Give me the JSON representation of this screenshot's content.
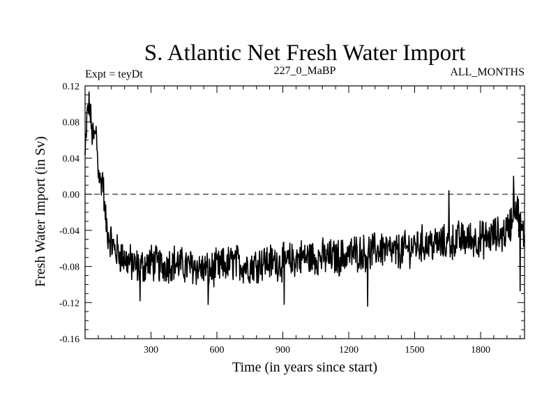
{
  "chart_data": {
    "type": "line",
    "title": "S. Atlantic Net Fresh Water Import",
    "subtitle_left": "Expt = teyDt",
    "subtitle_center": "227_0_MaBP",
    "subtitle_right": "ALL_MONTHS",
    "xlabel": "Time (in years since start)",
    "ylabel": "Fresh Water Import (in Sv)",
    "xlim": [
      0,
      2000
    ],
    "ylim": [
      -0.16,
      0.12
    ],
    "x_ticks": [
      300,
      600,
      900,
      1200,
      1500,
      1800
    ],
    "x_tick_labels": [
      "300",
      "600",
      "900",
      "1200",
      "1500",
      "1800"
    ],
    "y_ticks": [
      0.12,
      0.08,
      0.04,
      0.0,
      -0.04,
      -0.08,
      -0.12,
      -0.16
    ],
    "y_tick_labels": [
      "0.12",
      "0.08",
      "0.04",
      "0.00",
      "-0.04",
      "-0.08",
      "-0.12",
      "-0.16"
    ],
    "reference_line": {
      "y": 0.0,
      "style": "dashed"
    },
    "series": [
      {
        "name": "Net fresh water import",
        "x": [
          0,
          10,
          20,
          30,
          40,
          50,
          60,
          70,
          80,
          90,
          100,
          115,
          130,
          150,
          175,
          200,
          230,
          260,
          300,
          350,
          400,
          450,
          500,
          560,
          620,
          680,
          740,
          800,
          860,
          920,
          980,
          1040,
          1100,
          1160,
          1220,
          1290,
          1350,
          1410,
          1470,
          1530,
          1590,
          1650,
          1700,
          1760,
          1820,
          1870,
          1900,
          1920,
          1940,
          1955,
          1970,
          1985,
          2000
        ],
        "y": [
          0.04,
          0.09,
          0.1,
          0.07,
          0.06,
          0.07,
          0.03,
          0.01,
          0.02,
          -0.02,
          -0.04,
          -0.05,
          -0.06,
          -0.065,
          -0.07,
          -0.075,
          -0.08,
          -0.08,
          -0.075,
          -0.08,
          -0.075,
          -0.08,
          -0.08,
          -0.085,
          -0.08,
          -0.075,
          -0.08,
          -0.075,
          -0.075,
          -0.075,
          -0.07,
          -0.07,
          -0.07,
          -0.07,
          -0.065,
          -0.065,
          -0.06,
          -0.065,
          -0.06,
          -0.055,
          -0.055,
          -0.055,
          -0.05,
          -0.05,
          -0.05,
          -0.045,
          -0.045,
          -0.04,
          -0.03,
          -0.01,
          -0.02,
          -0.04,
          -0.05
        ],
        "noise_amplitude": 0.018,
        "noise_spikes": [
          {
            "x": 250,
            "y": -0.118
          },
          {
            "x": 560,
            "y": -0.122
          },
          {
            "x": 905,
            "y": -0.122
          },
          {
            "x": 1285,
            "y": -0.124
          },
          {
            "x": 1655,
            "y": 0.004
          },
          {
            "x": 1950,
            "y": 0.02
          },
          {
            "x": 1980,
            "y": -0.107
          }
        ]
      }
    ]
  }
}
